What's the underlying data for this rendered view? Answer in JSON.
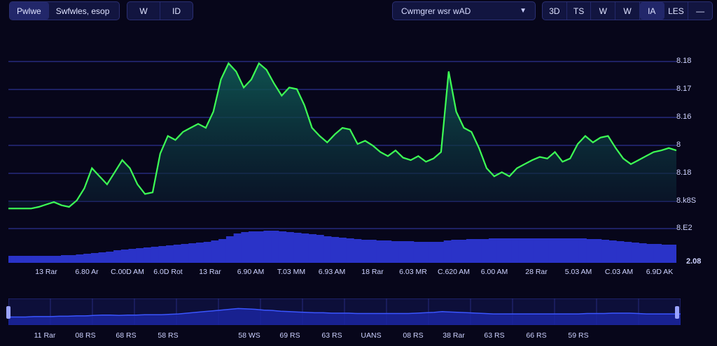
{
  "toolbar": {
    "left_group": [
      {
        "label": "Pwlwe",
        "active": true
      },
      {
        "label": "Swfwles, esop",
        "active": false
      }
    ],
    "icon_group": [
      {
        "label": "W",
        "icon": "draw-icon"
      },
      {
        "label": "ID",
        "icon": "indicator-icon"
      }
    ],
    "dropdown": {
      "value": "Cwmgrer wsr wAD"
    },
    "timeframes": [
      {
        "label": "3D",
        "active": false
      },
      {
        "label": "TS",
        "active": false
      },
      {
        "label": "W",
        "active": false
      },
      {
        "label": "W",
        "active": false
      },
      {
        "label": "IA",
        "active": true
      },
      {
        "label": "LES",
        "active": false
      },
      {
        "label": "—",
        "active": false
      }
    ]
  },
  "colors": {
    "line": "#3dff55",
    "fill_top": "#0f5a55",
    "volume": "#2a33c8",
    "grid": "#2d3290",
    "navigator_line": "#3a55ff"
  },
  "chart_data": {
    "type": "area",
    "series": [
      {
        "values": [
          8.15,
          8.15,
          8.15,
          8.15,
          8.152,
          8.155,
          8.158,
          8.154,
          8.152,
          8.16,
          8.175,
          8.2,
          8.19,
          8.18,
          8.195,
          8.21,
          8.2,
          8.18,
          8.168,
          8.17,
          8.218,
          8.24,
          8.235,
          8.245,
          8.25,
          8.255,
          8.25,
          8.27,
          8.31,
          8.33,
          8.32,
          8.3,
          8.31,
          8.33,
          8.322,
          8.305,
          8.29,
          8.3,
          8.298,
          8.278,
          8.25,
          8.24,
          8.232,
          8.242,
          8.25,
          8.248,
          8.23,
          8.234,
          8.228,
          8.22,
          8.215,
          8.222,
          8.213,
          8.21,
          8.215,
          8.208,
          8.212,
          8.22,
          8.32,
          8.27,
          8.25,
          8.245,
          8.225,
          8.2,
          8.19,
          8.195,
          8.19,
          8.2,
          8.205,
          8.21,
          8.214,
          8.212,
          8.22,
          8.208,
          8.212,
          8.23,
          8.24,
          8.232,
          8.238,
          8.24,
          8.225,
          8.212,
          8.205,
          8.21,
          8.215,
          8.22,
          8.222,
          8.225,
          8.222
        ]
      }
    ],
    "y_tick_labels": [
      "8.18",
      "8.17",
      "8.16",
      "8",
      "8.18",
      "8.k8S",
      "8.E2"
    ],
    "secondary_axis_label": "2.08",
    "x_tick_labels": [
      "13 Rar",
      "6.80 Ar",
      "C.00D AM",
      "6.0D Rot",
      "13 Rar",
      "6.90 AM",
      "T.03 MM",
      "6.93 AM",
      "18 Rar",
      "6.03 MR",
      "C.620 AM",
      "6.00 AM",
      "28 Rar",
      "5.03 AM",
      "C.03 AM",
      "6.9D AK"
    ],
    "volume": [
      10,
      10,
      10,
      10,
      10,
      10,
      10,
      11,
      11,
      12,
      13,
      14,
      15,
      16,
      18,
      19,
      20,
      21,
      22,
      23,
      24,
      25,
      26,
      27,
      28,
      29,
      30,
      32,
      34,
      38,
      42,
      44,
      45,
      45,
      46,
      46,
      45,
      44,
      43,
      42,
      41,
      40,
      38,
      37,
      36,
      35,
      34,
      33,
      33,
      32,
      32,
      31,
      31,
      31,
      30,
      30,
      30,
      30,
      32,
      33,
      33,
      34,
      34,
      34,
      35,
      35,
      35,
      35,
      35,
      35,
      35,
      35,
      35,
      35,
      35,
      35,
      35,
      34,
      34,
      33,
      32,
      31,
      30,
      29,
      28,
      27,
      27,
      26,
      26
    ],
    "navigator": [
      10,
      10,
      10,
      11,
      11,
      11,
      12,
      12,
      13,
      13,
      14,
      15,
      15,
      14,
      15,
      15,
      16,
      16,
      16,
      17,
      18,
      20,
      22,
      24,
      26,
      28,
      30,
      32,
      31,
      30,
      28,
      27,
      25,
      24,
      23,
      22,
      21,
      21,
      20,
      20,
      20,
      19,
      19,
      19,
      19,
      19,
      19,
      19,
      20,
      21,
      22,
      24,
      23,
      22,
      21,
      20,
      19,
      18,
      18,
      18,
      18,
      18,
      18,
      18,
      18,
      18,
      18,
      18,
      19,
      19,
      19,
      20,
      20,
      20,
      19,
      18,
      18,
      18,
      18,
      18
    ],
    "navigator_x_labels": [
      "11 Rar",
      "08 RS",
      "68 RS",
      "58 RS",
      "58 WS",
      "69 RS",
      "63 RS",
      "UANS",
      "08 RS",
      "38 Rar",
      "63 RS",
      "66 RS",
      "59 RS"
    ]
  }
}
